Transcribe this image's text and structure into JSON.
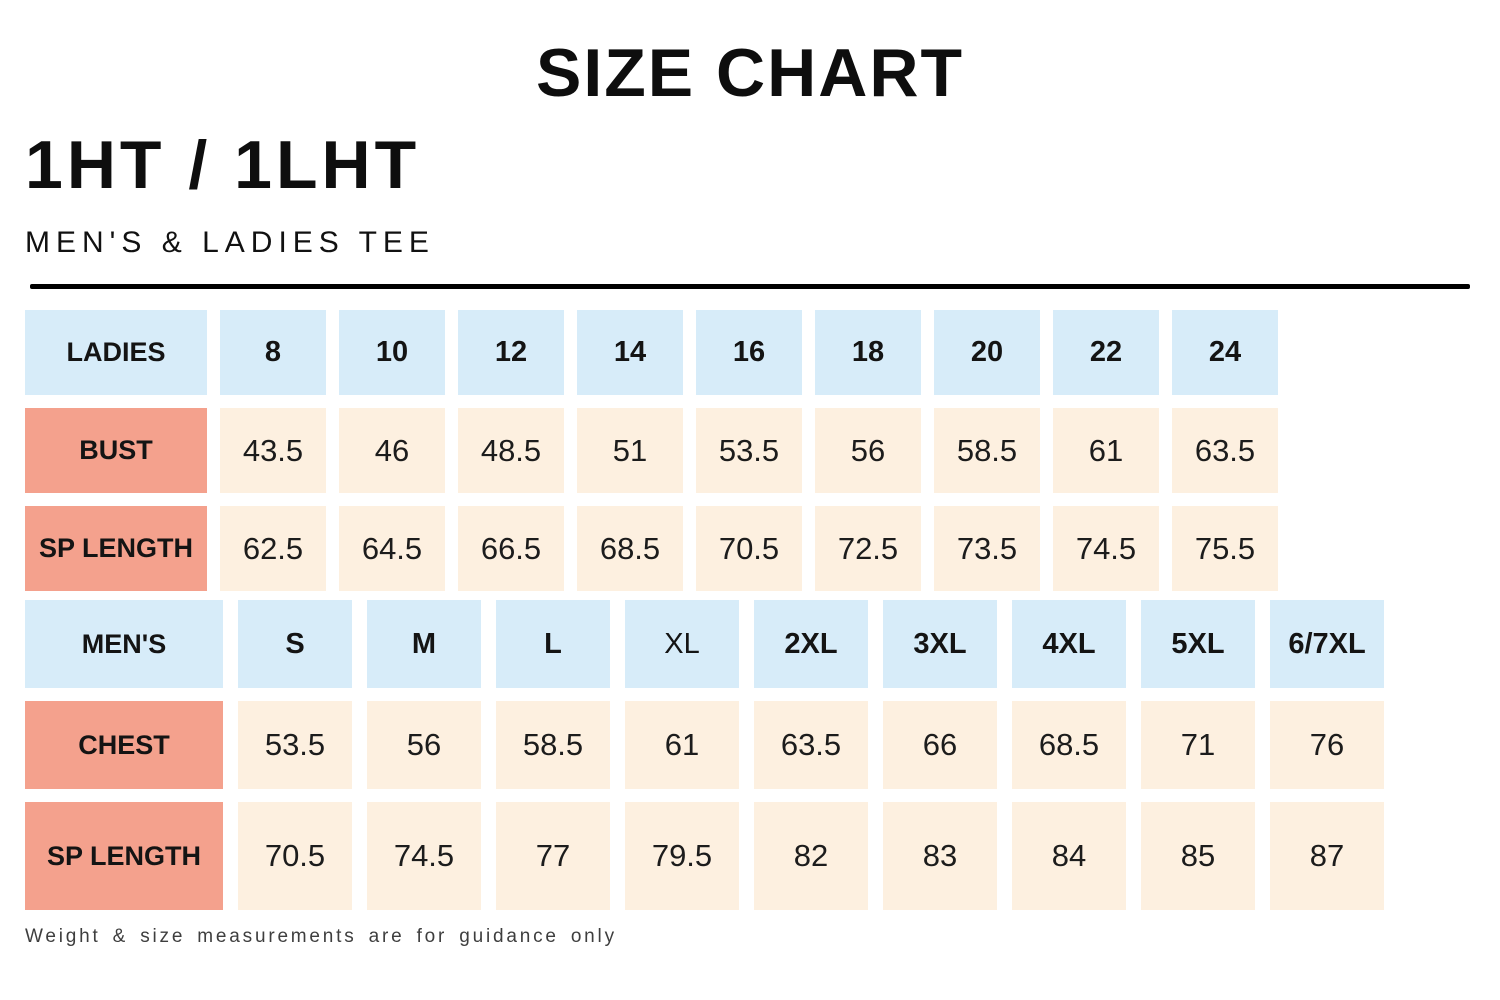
{
  "header": {
    "title": "SIZE CHART",
    "product_code": "1HT / 1LHT",
    "subtitle": "MEN'S & LADIES TEE"
  },
  "colors": {
    "size_bg": "#d7ecf9",
    "label_bg": "#f4a18d",
    "value_bg": "#fdf0e0",
    "divider": "#000000"
  },
  "tables": [
    {
      "name": "ladies",
      "header_label": "LADIES",
      "sizes": [
        "8",
        "10",
        "12",
        "14",
        "16",
        "18",
        "20",
        "22",
        "24"
      ],
      "regular_weight_sizes": [
        "XL"
      ],
      "rows": [
        {
          "label": "BUST",
          "values": [
            "43.5",
            "46",
            "48.5",
            "51",
            "53.5",
            "56",
            "58.5",
            "61",
            "63.5"
          ]
        },
        {
          "label": "SP LENGTH",
          "values": [
            "62.5",
            "64.5",
            "66.5",
            "68.5",
            "70.5",
            "72.5",
            "73.5",
            "74.5",
            "75.5"
          ]
        }
      ]
    },
    {
      "name": "mens",
      "header_label": "MEN'S",
      "sizes": [
        "S",
        "M",
        "L",
        "XL",
        "2XL",
        "3XL",
        "4XL",
        "5XL",
        "6/7XL"
      ],
      "regular_weight_sizes": [
        "XL"
      ],
      "rows": [
        {
          "label": "CHEST",
          "values": [
            "53.5",
            "56",
            "58.5",
            "61",
            "63.5",
            "66",
            "68.5",
            "71",
            "76"
          ]
        },
        {
          "label": "SP LENGTH",
          "values": [
            "70.5",
            "74.5",
            "77",
            "79.5",
            "82",
            "83",
            "84",
            "85",
            "87"
          ]
        }
      ]
    }
  ],
  "footer": {
    "note": "Weight & size measurements are for guidance only"
  }
}
